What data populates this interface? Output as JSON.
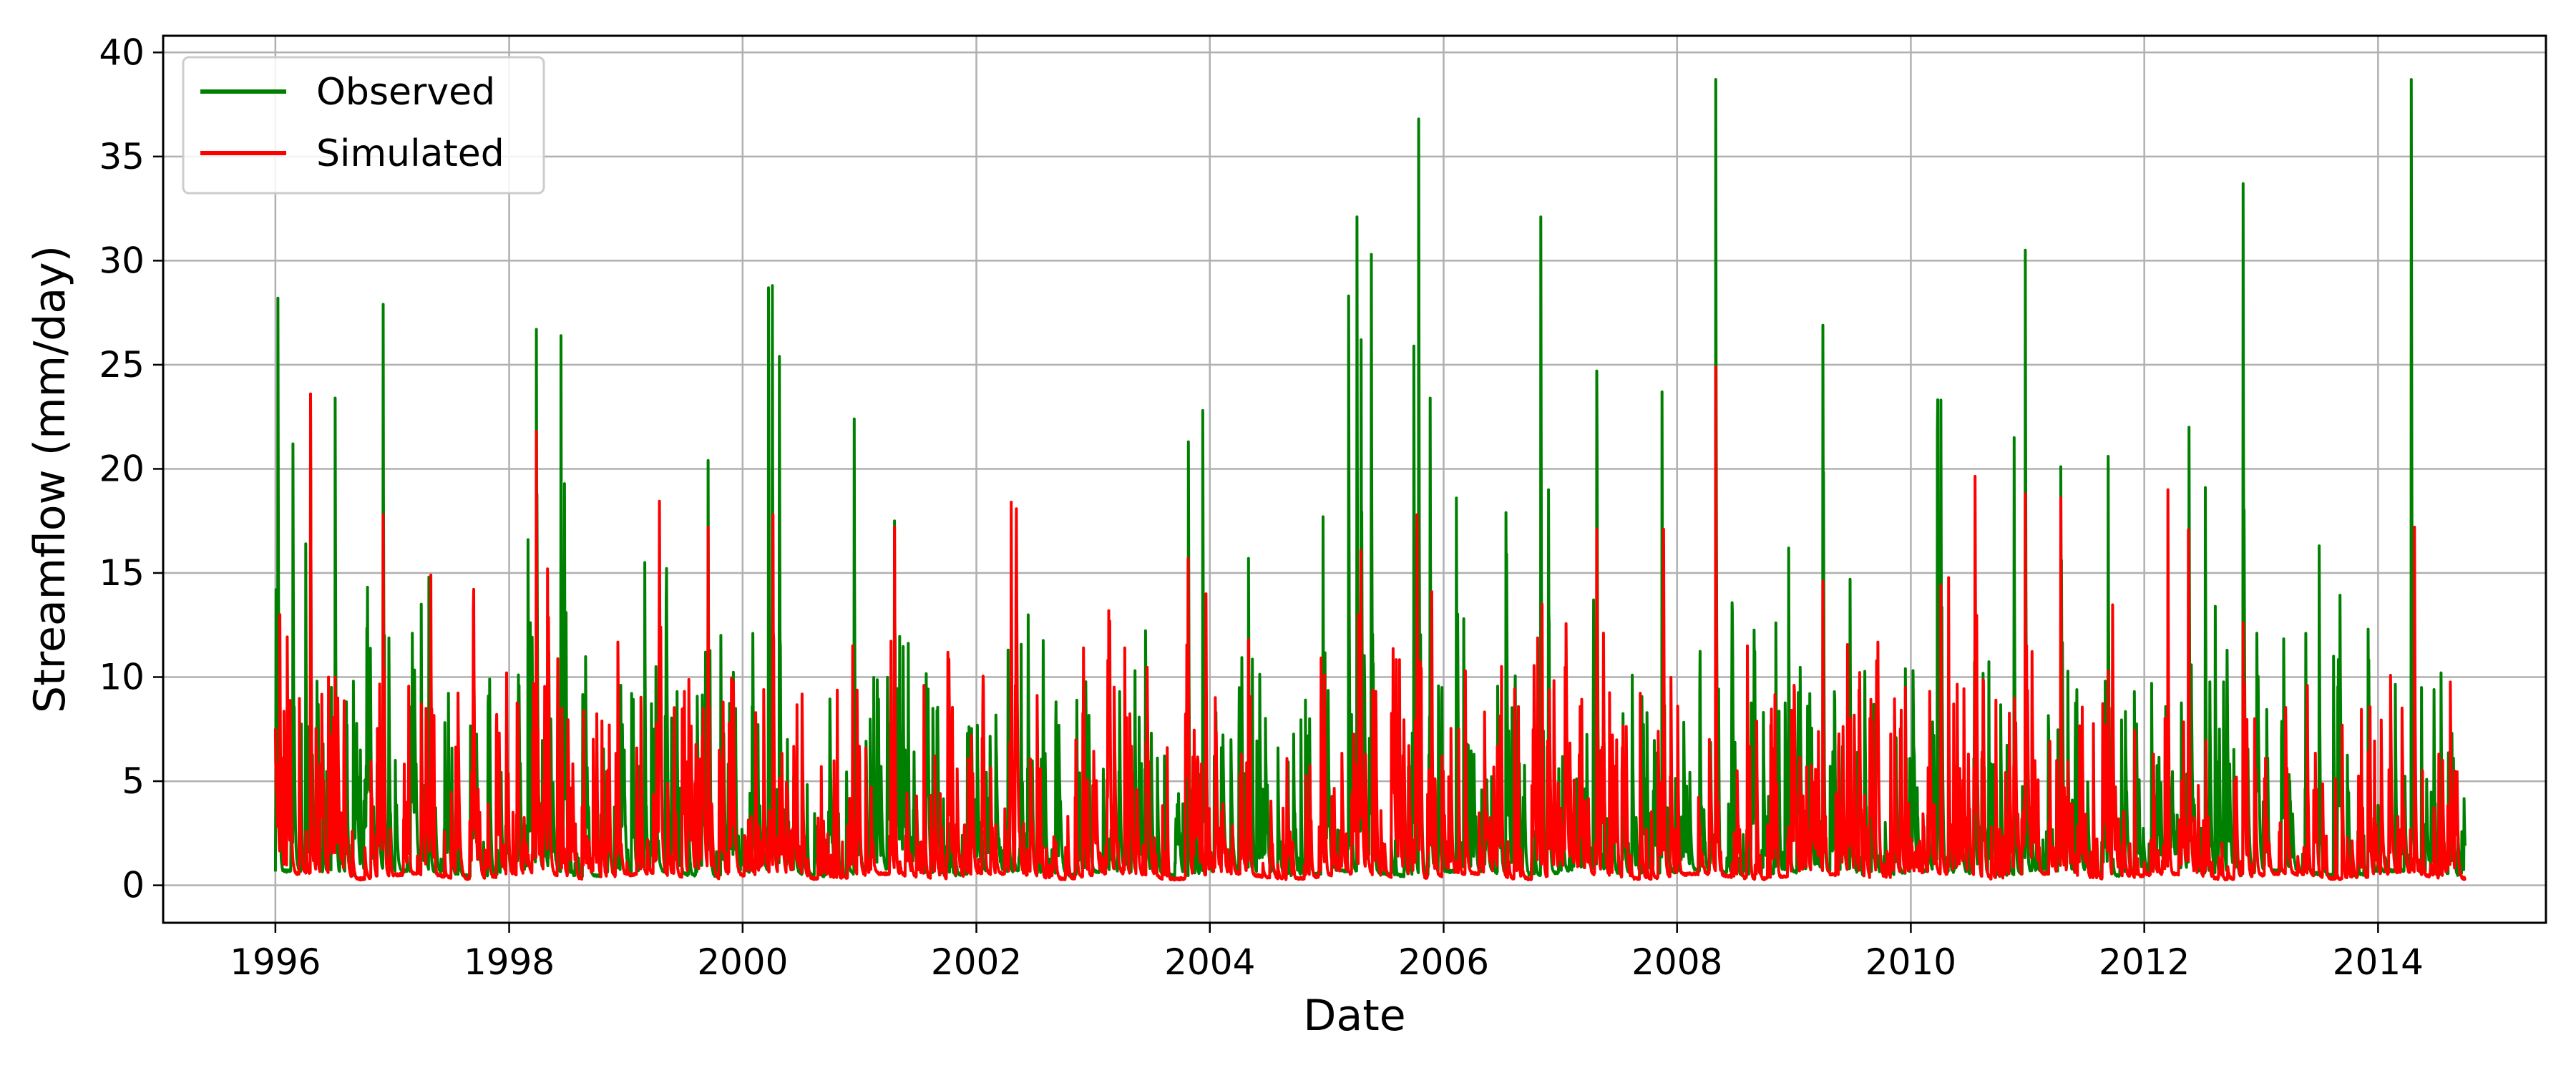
{
  "chart_data": {
    "type": "line",
    "title": "",
    "xlabel": "Date",
    "ylabel": "Streamflow (mm/day)",
    "x_axis": {
      "type": "date",
      "range": [
        "1995-01-15",
        "2015-06-10"
      ],
      "ticks": [
        "1996",
        "1998",
        "2000",
        "2002",
        "2004",
        "2006",
        "2008",
        "2010",
        "2012",
        "2014"
      ]
    },
    "ylim": [
      -1.8,
      40.8
    ],
    "yticks": [
      0,
      5,
      10,
      15,
      20,
      25,
      30,
      35,
      40
    ],
    "grid": true,
    "legend": {
      "placement": "top-left",
      "entries": [
        "Observed",
        "Simulated"
      ]
    },
    "data_span": [
      "1996-01-01",
      "2014-09-30"
    ],
    "series": [
      {
        "name": "Observed",
        "color": "#008000",
        "baseflow": 0.4,
        "peaks": [
          [
            "1996-01-03",
            14.2
          ],
          [
            "1996-01-09",
            28.2
          ],
          [
            "1996-02-25",
            21.2
          ],
          [
            "1996-04-05",
            16.4
          ],
          [
            "1996-04-20",
            23.6
          ],
          [
            "1996-05-10",
            9.8
          ],
          [
            "1996-07-06",
            23.4
          ],
          [
            "1996-08-10",
            6.2
          ],
          [
            "1996-09-01",
            9.8
          ],
          [
            "1996-12-03",
            27.9
          ],
          [
            "1997-01-10",
            6.0
          ],
          [
            "1997-04-01",
            13.5
          ],
          [
            "1997-04-25",
            14.8
          ],
          [
            "1997-06-15",
            3.0
          ],
          [
            "1997-11-01",
            9.9
          ],
          [
            "1998-03-01",
            16.6
          ],
          [
            "1998-03-27",
            26.7
          ],
          [
            "1998-05-05",
            11.2
          ],
          [
            "1998-06-12",
            26.4
          ],
          [
            "1998-06-28",
            13.1
          ],
          [
            "1999-03-01",
            15.5
          ],
          [
            "1999-04-05",
            10.5
          ],
          [
            "1999-06-10",
            9.3
          ],
          [
            "1999-09-15",
            20.4
          ],
          [
            "1999-10-25",
            12.0
          ],
          [
            "2000-03-22",
            28.7
          ],
          [
            "2000-04-03",
            28.8
          ],
          [
            "2000-04-25",
            25.4
          ],
          [
            "2000-05-20",
            7.0
          ],
          [
            "2000-12-15",
            22.4
          ],
          [
            "2001-04-20",
            17.5
          ],
          [
            "2001-06-20",
            6.4
          ],
          [
            "2002-04-10",
            11.3
          ],
          [
            "2002-06-10",
            5.6
          ],
          [
            "2002-11-20",
            5.4
          ],
          [
            "2003-03-25",
            9.3
          ],
          [
            "2003-10-26",
            21.3
          ],
          [
            "2003-12-10",
            22.8
          ],
          [
            "2004-05-01",
            15.7
          ],
          [
            "2004-08-01",
            6.6
          ],
          [
            "2004-12-20",
            17.7
          ],
          [
            "2005-03-10",
            28.3
          ],
          [
            "2005-04-05",
            32.1
          ],
          [
            "2005-04-18",
            26.2
          ],
          [
            "2005-05-20",
            30.3
          ],
          [
            "2005-09-30",
            25.9
          ],
          [
            "2005-10-15",
            36.8
          ],
          [
            "2005-11-20",
            23.4
          ],
          [
            "2006-02-10",
            18.6
          ],
          [
            "2006-03-05",
            12.8
          ],
          [
            "2006-07-15",
            17.9
          ],
          [
            "2006-11-01",
            32.1
          ],
          [
            "2006-11-25",
            19.0
          ],
          [
            "2007-04-25",
            24.7
          ],
          [
            "2007-11-15",
            23.7
          ],
          [
            "2008-05-01",
            38.7
          ],
          [
            "2008-06-20",
            8.9
          ],
          [
            "2008-11-05",
            12.6
          ],
          [
            "2008-12-15",
            16.2
          ],
          [
            "2009-04-01",
            26.9
          ],
          [
            "2009-06-25",
            14.7
          ],
          [
            "2009-12-15",
            10.4
          ],
          [
            "2010-03-25",
            21.8
          ],
          [
            "2010-04-05",
            23.3
          ],
          [
            "2010-11-20",
            21.5
          ],
          [
            "2010-12-25",
            30.5
          ],
          [
            "2011-04-15",
            20.1
          ],
          [
            "2011-09-10",
            20.6
          ],
          [
            "2011-12-01",
            9.3
          ],
          [
            "2012-05-20",
            22.0
          ],
          [
            "2012-07-10",
            19.1
          ],
          [
            "2012-08-10",
            13.4
          ],
          [
            "2012-11-05",
            33.7
          ],
          [
            "2013-05-20",
            12.1
          ],
          [
            "2013-07-01",
            16.3
          ],
          [
            "2013-08-15",
            11.0
          ],
          [
            "2013-12-01",
            12.3
          ],
          [
            "2014-04-15",
            38.7
          ],
          [
            "2014-06-25",
            9.4
          ],
          [
            "2014-08-20",
            7.3
          ]
        ]
      },
      {
        "name": "Simulated",
        "color": "#ff0000",
        "baseflow": 0.25,
        "peaks": [
          [
            "1996-01-15",
            13.0
          ],
          [
            "1996-04-20",
            23.6
          ],
          [
            "1996-06-15",
            10.0
          ],
          [
            "1996-12-03",
            17.8
          ],
          [
            "1997-05-01",
            14.9
          ],
          [
            "1997-10-01",
            3.5
          ],
          [
            "1998-03-27",
            21.8
          ],
          [
            "1998-05-01",
            15.2
          ],
          [
            "1998-06-15",
            8.5
          ],
          [
            "1998-11-10",
            7.7
          ],
          [
            "1999-04-20",
            12.4
          ],
          [
            "1999-09-15",
            17.2
          ],
          [
            "1999-11-01",
            8.8
          ],
          [
            "2000-04-05",
            17.8
          ],
          [
            "2000-12-10",
            11.5
          ],
          [
            "2001-04-20",
            17.2
          ],
          [
            "2002-04-20",
            18.4
          ],
          [
            "2002-07-20",
            5.6
          ],
          [
            "2003-04-10",
            11.4
          ],
          [
            "2003-10-25",
            15.7
          ],
          [
            "2003-12-20",
            14.0
          ],
          [
            "2004-05-01",
            11.8
          ],
          [
            "2004-12-25",
            10.1
          ],
          [
            "2005-04-10",
            13.0
          ],
          [
            "2005-10-10",
            17.8
          ],
          [
            "2005-11-25",
            14.1
          ],
          [
            "2006-03-10",
            10.3
          ],
          [
            "2006-11-05",
            13.5
          ],
          [
            "2007-04-25",
            17.1
          ],
          [
            "2007-11-20",
            17.1
          ],
          [
            "2008-05-01",
            24.9
          ],
          [
            "2009-04-01",
            14.6
          ],
          [
            "2009-12-15",
            9.5
          ],
          [
            "2010-04-05",
            14.4
          ],
          [
            "2010-12-25",
            18.8
          ],
          [
            "2011-04-15",
            18.6
          ],
          [
            "2011-09-10",
            10.3
          ],
          [
            "2012-03-15",
            19.0
          ],
          [
            "2012-11-05",
            12.6
          ],
          [
            "2013-05-25",
            9.6
          ],
          [
            "2013-12-01",
            6.4
          ],
          [
            "2014-04-25",
            17.2
          ],
          [
            "2014-07-10",
            6.3
          ]
        ]
      }
    ]
  }
}
